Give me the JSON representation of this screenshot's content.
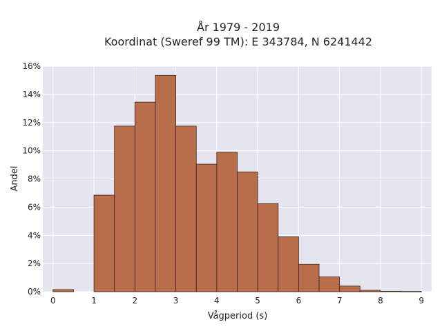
{
  "chart_data": {
    "type": "bar",
    "title_line1": "År 1979 - 2019",
    "title_line2": "Koordinat (Sweref 99 TM): E 343784, N 6241442",
    "xlabel": "Vågperiod (s)",
    "ylabel": "Andel",
    "bin_width": 0.5,
    "bins": [
      {
        "start": 0.0,
        "value": 0.15
      },
      {
        "start": 0.5,
        "value": 0.0
      },
      {
        "start": 1.0,
        "value": 6.85
      },
      {
        "start": 1.5,
        "value": 11.75
      },
      {
        "start": 2.0,
        "value": 13.45
      },
      {
        "start": 2.5,
        "value": 15.35
      },
      {
        "start": 3.0,
        "value": 11.75
      },
      {
        "start": 3.5,
        "value": 9.05
      },
      {
        "start": 4.0,
        "value": 9.9
      },
      {
        "start": 4.5,
        "value": 8.5
      },
      {
        "start": 5.0,
        "value": 6.25
      },
      {
        "start": 5.5,
        "value": 3.9
      },
      {
        "start": 6.0,
        "value": 1.95
      },
      {
        "start": 6.5,
        "value": 1.05
      },
      {
        "start": 7.0,
        "value": 0.4
      },
      {
        "start": 7.5,
        "value": 0.1
      },
      {
        "start": 8.0,
        "value": 0.03
      },
      {
        "start": 8.5,
        "value": 0.02
      }
    ],
    "xlim": [
      -0.25,
      9.25
    ],
    "ylim": [
      0,
      16
    ],
    "x_ticks": [
      "0",
      "1",
      "2",
      "3",
      "4",
      "5",
      "6",
      "7",
      "8",
      "9"
    ],
    "y_ticks": [
      "0%",
      "2%",
      "4%",
      "6%",
      "8%",
      "10%",
      "12%",
      "14%",
      "16%"
    ],
    "grid": true,
    "colors": {
      "bar_fill": "#b86e4a",
      "bar_stroke": "#3b2415",
      "plot_bg": "#e5e5f0",
      "grid": "#ffffff"
    }
  }
}
